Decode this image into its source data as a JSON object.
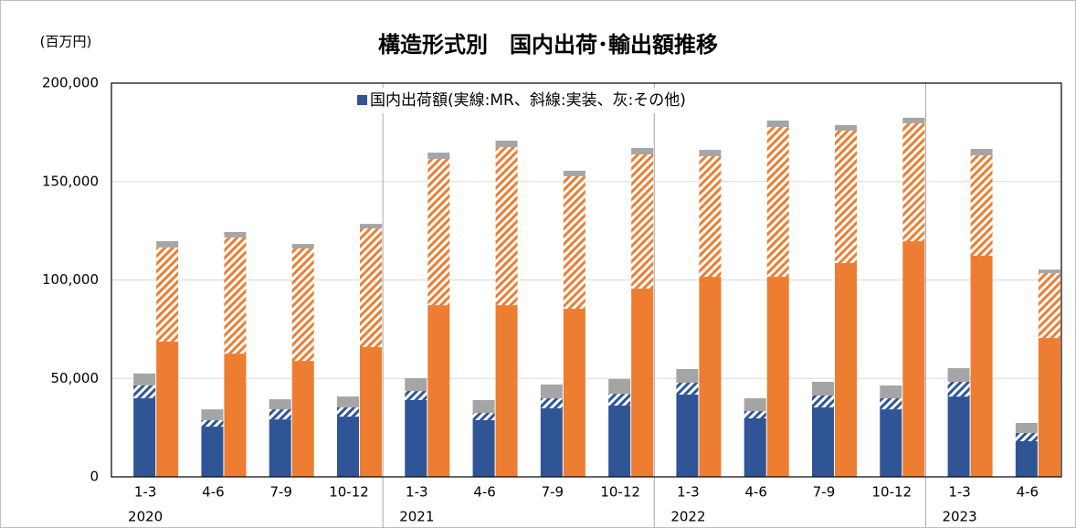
{
  "chart_data": {
    "type": "stacked-group-bar",
    "title": "構造形式別　国内出荷･輸出額推移",
    "unit_label": "(百万円)",
    "legend": "国内出荷額(実線:MR、斜線:実装、灰:その他)",
    "legend_color": "#2f5597",
    "categories": [
      "1-3",
      "4-6",
      "7-9",
      "10-12",
      "1-3",
      "4-6",
      "7-9",
      "10-12",
      "1-3",
      "4-6",
      "7-9",
      "10-12",
      "1-3",
      "4-6"
    ],
    "year_labels": [
      "2020",
      null,
      null,
      null,
      "2021",
      null,
      null,
      null,
      "2022",
      null,
      null,
      null,
      "2023",
      null
    ],
    "series": [
      {
        "stack": 0,
        "pattern": "solid",
        "color": "#2f5597",
        "values": [
          40000,
          25500,
          29200,
          30600,
          39000,
          28800,
          34800,
          36200,
          41800,
          29700,
          35300,
          34300,
          40800,
          18100
        ]
      },
      {
        "stack": 0,
        "pattern": "hatch",
        "color": "#2f5597",
        "values": [
          6500,
          3300,
          5100,
          4700,
          4600,
          3700,
          5100,
          6000,
          6000,
          3700,
          6000,
          5600,
          7500,
          4200
        ]
      },
      {
        "stack": 0,
        "pattern": "solid",
        "color": "#a5a5a5",
        "values": [
          6000,
          5500,
          5100,
          5500,
          6500,
          6500,
          7000,
          7500,
          7000,
          6500,
          7000,
          6500,
          6900,
          5100
        ]
      },
      {
        "stack": 1,
        "pattern": "solid",
        "color": "#ed7d31",
        "values": [
          68700,
          62600,
          58900,
          65900,
          87200,
          87200,
          85400,
          95600,
          101600,
          101600,
          108600,
          119700,
          112300,
          70500
        ]
      },
      {
        "stack": 1,
        "pattern": "hatch",
        "color": "#ed7d31",
        "values": [
          47800,
          59000,
          57100,
          60300,
          74300,
          80300,
          67300,
          68200,
          61300,
          76100,
          67300,
          59900,
          51000,
          33000
        ]
      },
      {
        "stack": 1,
        "pattern": "solid",
        "color": "#a5a5a5",
        "values": [
          3200,
          2800,
          2300,
          2300,
          3200,
          3300,
          2800,
          3300,
          3200,
          3300,
          2800,
          2800,
          3300,
          1800
        ]
      }
    ],
    "ylim": [
      0,
      200000
    ],
    "yticks": [
      0,
      {
        "value": 50000,
        "label": "50,000"
      },
      {
        "value": 100000,
        "label": "100,000"
      },
      {
        "value": 150000,
        "label": "150,000"
      },
      {
        "value": 200000,
        "label": "200,000"
      }
    ],
    "grid": true
  }
}
